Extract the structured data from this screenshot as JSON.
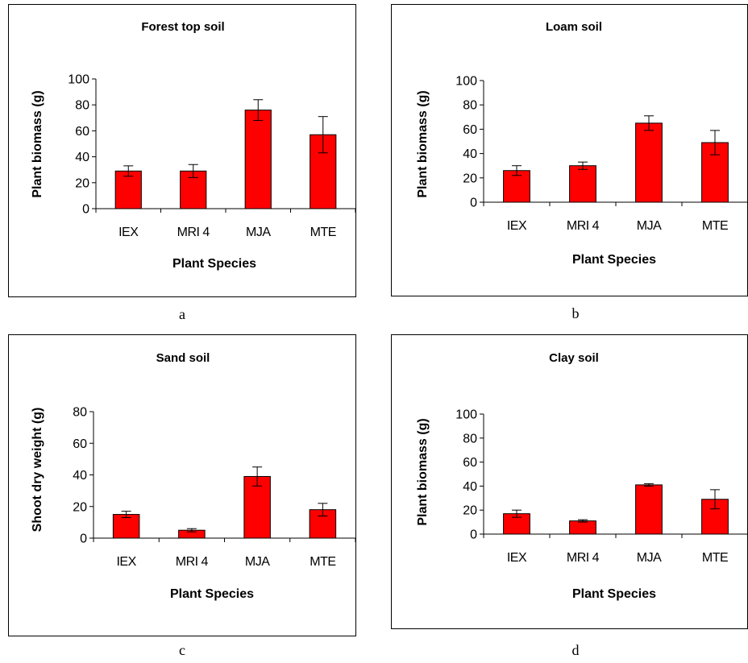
{
  "chart_data": [
    {
      "type": "bar",
      "title": "Forest top soil",
      "xlabel": "Plant Species",
      "ylabel": "Plant biomass (g)",
      "categories": [
        "IEX",
        "MRI 4",
        "MJA",
        "MTE"
      ],
      "values": [
        29,
        29,
        76,
        57
      ],
      "errors": [
        4,
        5,
        8,
        14
      ],
      "ylim": [
        0,
        100
      ],
      "yticks": [
        0,
        20,
        40,
        60,
        80,
        100
      ],
      "color": "#ff0000",
      "caption": "a"
    },
    {
      "type": "bar",
      "title": "Loam soil",
      "xlabel": "Plant Species",
      "ylabel": "Plant biomass (g)",
      "categories": [
        "IEX",
        "MRI 4",
        "MJA",
        "MTE"
      ],
      "values": [
        26,
        30,
        65,
        49
      ],
      "errors": [
        4,
        3,
        6,
        10
      ],
      "ylim": [
        0,
        100
      ],
      "yticks": [
        0,
        20,
        40,
        60,
        80,
        100
      ],
      "color": "#ff0000",
      "caption": "b"
    },
    {
      "type": "bar",
      "title": "Sand soil",
      "xlabel": "Plant Species",
      "ylabel": "Shoot dry weight (g)",
      "categories": [
        "IEX",
        "MRI 4",
        "MJA",
        "MTE"
      ],
      "values": [
        15,
        5,
        39,
        18
      ],
      "errors": [
        2,
        1,
        6,
        4
      ],
      "ylim": [
        0,
        80
      ],
      "yticks": [
        0,
        20,
        40,
        60,
        80
      ],
      "color": "#ff0000",
      "caption": "c"
    },
    {
      "type": "bar",
      "title": "Clay soil",
      "xlabel": "Plant Species",
      "ylabel": "Plant biomass (g)",
      "categories": [
        "IEX",
        "MRI 4",
        "MJA",
        "MTE"
      ],
      "values": [
        17,
        11,
        41,
        29
      ],
      "errors": [
        3,
        1,
        1,
        8
      ],
      "ylim": [
        0,
        100
      ],
      "yticks": [
        0,
        20,
        40,
        60,
        80,
        100
      ],
      "color": "#ff0000",
      "caption": "d"
    }
  ]
}
